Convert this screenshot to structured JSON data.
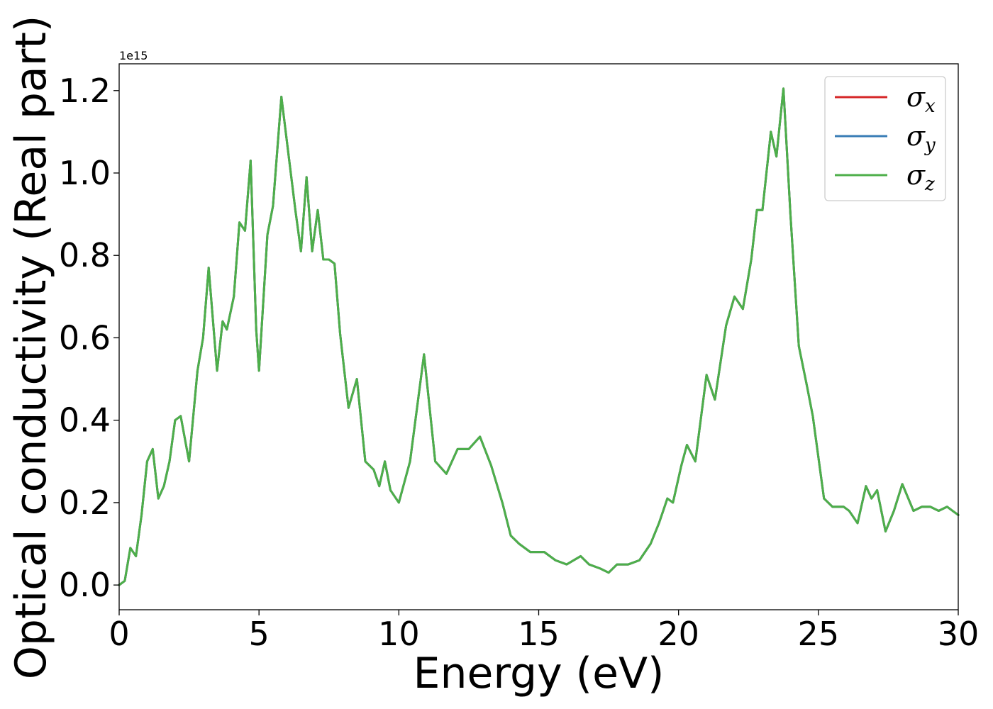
{
  "chart_data": {
    "type": "line",
    "title": "",
    "xlabel": "Energy (eV)",
    "ylabel": "Optical conductivity (Real part)",
    "y_offset_text": "1e15",
    "xlim": [
      0,
      30
    ],
    "ylim": [
      -0.06,
      1.265
    ],
    "y_scale_factor": 1000000000000000.0,
    "x_ticks": [
      0,
      5,
      10,
      15,
      20,
      25,
      30
    ],
    "x_tick_labels": [
      "0",
      "5",
      "10",
      "15",
      "20",
      "25",
      "30"
    ],
    "y_ticks": [
      0.0,
      0.2,
      0.4,
      0.6,
      0.8,
      1.0,
      1.2
    ],
    "y_tick_labels": [
      "0.0",
      "0.2",
      "0.4",
      "0.6",
      "0.8",
      "1.0",
      "1.2"
    ],
    "grid": false,
    "legend_position": "top-right",
    "colors": {
      "sigma_x": "#d62728",
      "sigma_y": "#3a7db6",
      "sigma_z": "#4daf4a"
    },
    "series": [
      {
        "name": "σx",
        "symbol": "σ",
        "subscript": "x",
        "color": "#d62728",
        "ref": "shared"
      },
      {
        "name": "σy",
        "symbol": "σ",
        "subscript": "y",
        "color": "#3a7db6",
        "ref": "shared"
      },
      {
        "name": "σz",
        "symbol": "σ",
        "subscript": "z",
        "color": "#4daf4a",
        "ref": "shared"
      }
    ],
    "shared_curve": [
      [
        0,
        0.0
      ],
      [
        0.2,
        0.01
      ],
      [
        0.4,
        0.09
      ],
      [
        0.6,
        0.07
      ],
      [
        0.8,
        0.17
      ],
      [
        1.0,
        0.3
      ],
      [
        1.2,
        0.33
      ],
      [
        1.4,
        0.21
      ],
      [
        1.6,
        0.24
      ],
      [
        1.8,
        0.3
      ],
      [
        2.0,
        0.4
      ],
      [
        2.2,
        0.41
      ],
      [
        2.5,
        0.3
      ],
      [
        2.8,
        0.52
      ],
      [
        3.0,
        0.6
      ],
      [
        3.2,
        0.77
      ],
      [
        3.5,
        0.52
      ],
      [
        3.7,
        0.64
      ],
      [
        3.85,
        0.62
      ],
      [
        4.1,
        0.7
      ],
      [
        4.3,
        0.88
      ],
      [
        4.5,
        0.86
      ],
      [
        4.7,
        1.03
      ],
      [
        4.9,
        0.62
      ],
      [
        5.0,
        0.52
      ],
      [
        5.3,
        0.85
      ],
      [
        5.5,
        0.92
      ],
      [
        5.8,
        1.185
      ],
      [
        6.1,
        1.02
      ],
      [
        6.3,
        0.91
      ],
      [
        6.5,
        0.81
      ],
      [
        6.7,
        0.99
      ],
      [
        6.9,
        0.81
      ],
      [
        7.1,
        0.91
      ],
      [
        7.3,
        0.79
      ],
      [
        7.5,
        0.79
      ],
      [
        7.7,
        0.78
      ],
      [
        7.9,
        0.61
      ],
      [
        8.2,
        0.43
      ],
      [
        8.5,
        0.5
      ],
      [
        8.8,
        0.3
      ],
      [
        9.1,
        0.28
      ],
      [
        9.3,
        0.24
      ],
      [
        9.5,
        0.3
      ],
      [
        9.7,
        0.23
      ],
      [
        10.0,
        0.2
      ],
      [
        10.4,
        0.3
      ],
      [
        10.9,
        0.56
      ],
      [
        11.3,
        0.3
      ],
      [
        11.7,
        0.27
      ],
      [
        12.1,
        0.33
      ],
      [
        12.5,
        0.33
      ],
      [
        12.9,
        0.36
      ],
      [
        13.3,
        0.29
      ],
      [
        13.7,
        0.2
      ],
      [
        14.0,
        0.12
      ],
      [
        14.3,
        0.1
      ],
      [
        14.7,
        0.08
      ],
      [
        15.2,
        0.08
      ],
      [
        15.6,
        0.06
      ],
      [
        16.0,
        0.05
      ],
      [
        16.5,
        0.07
      ],
      [
        16.8,
        0.05
      ],
      [
        17.2,
        0.04
      ],
      [
        17.5,
        0.03
      ],
      [
        17.8,
        0.05
      ],
      [
        18.2,
        0.05
      ],
      [
        18.6,
        0.06
      ],
      [
        19.0,
        0.1
      ],
      [
        19.3,
        0.15
      ],
      [
        19.6,
        0.21
      ],
      [
        19.8,
        0.2
      ],
      [
        20.1,
        0.29
      ],
      [
        20.3,
        0.34
      ],
      [
        20.6,
        0.3
      ],
      [
        21.0,
        0.51
      ],
      [
        21.3,
        0.45
      ],
      [
        21.7,
        0.63
      ],
      [
        22.0,
        0.7
      ],
      [
        22.3,
        0.67
      ],
      [
        22.6,
        0.79
      ],
      [
        22.8,
        0.91
      ],
      [
        23.0,
        0.91
      ],
      [
        23.3,
        1.1
      ],
      [
        23.5,
        1.04
      ],
      [
        23.75,
        1.205
      ],
      [
        24.0,
        0.9
      ],
      [
        24.3,
        0.58
      ],
      [
        24.6,
        0.48
      ],
      [
        24.8,
        0.41
      ],
      [
        25.2,
        0.21
      ],
      [
        25.5,
        0.19
      ],
      [
        25.9,
        0.19
      ],
      [
        26.1,
        0.18
      ],
      [
        26.4,
        0.15
      ],
      [
        26.7,
        0.24
      ],
      [
        26.9,
        0.21
      ],
      [
        27.1,
        0.23
      ],
      [
        27.4,
        0.13
      ],
      [
        27.7,
        0.18
      ],
      [
        28.0,
        0.245
      ],
      [
        28.4,
        0.18
      ],
      [
        28.7,
        0.19
      ],
      [
        29.0,
        0.19
      ],
      [
        29.3,
        0.18
      ],
      [
        29.6,
        0.19
      ],
      [
        29.8,
        0.18
      ],
      [
        30.0,
        0.17
      ]
    ]
  }
}
